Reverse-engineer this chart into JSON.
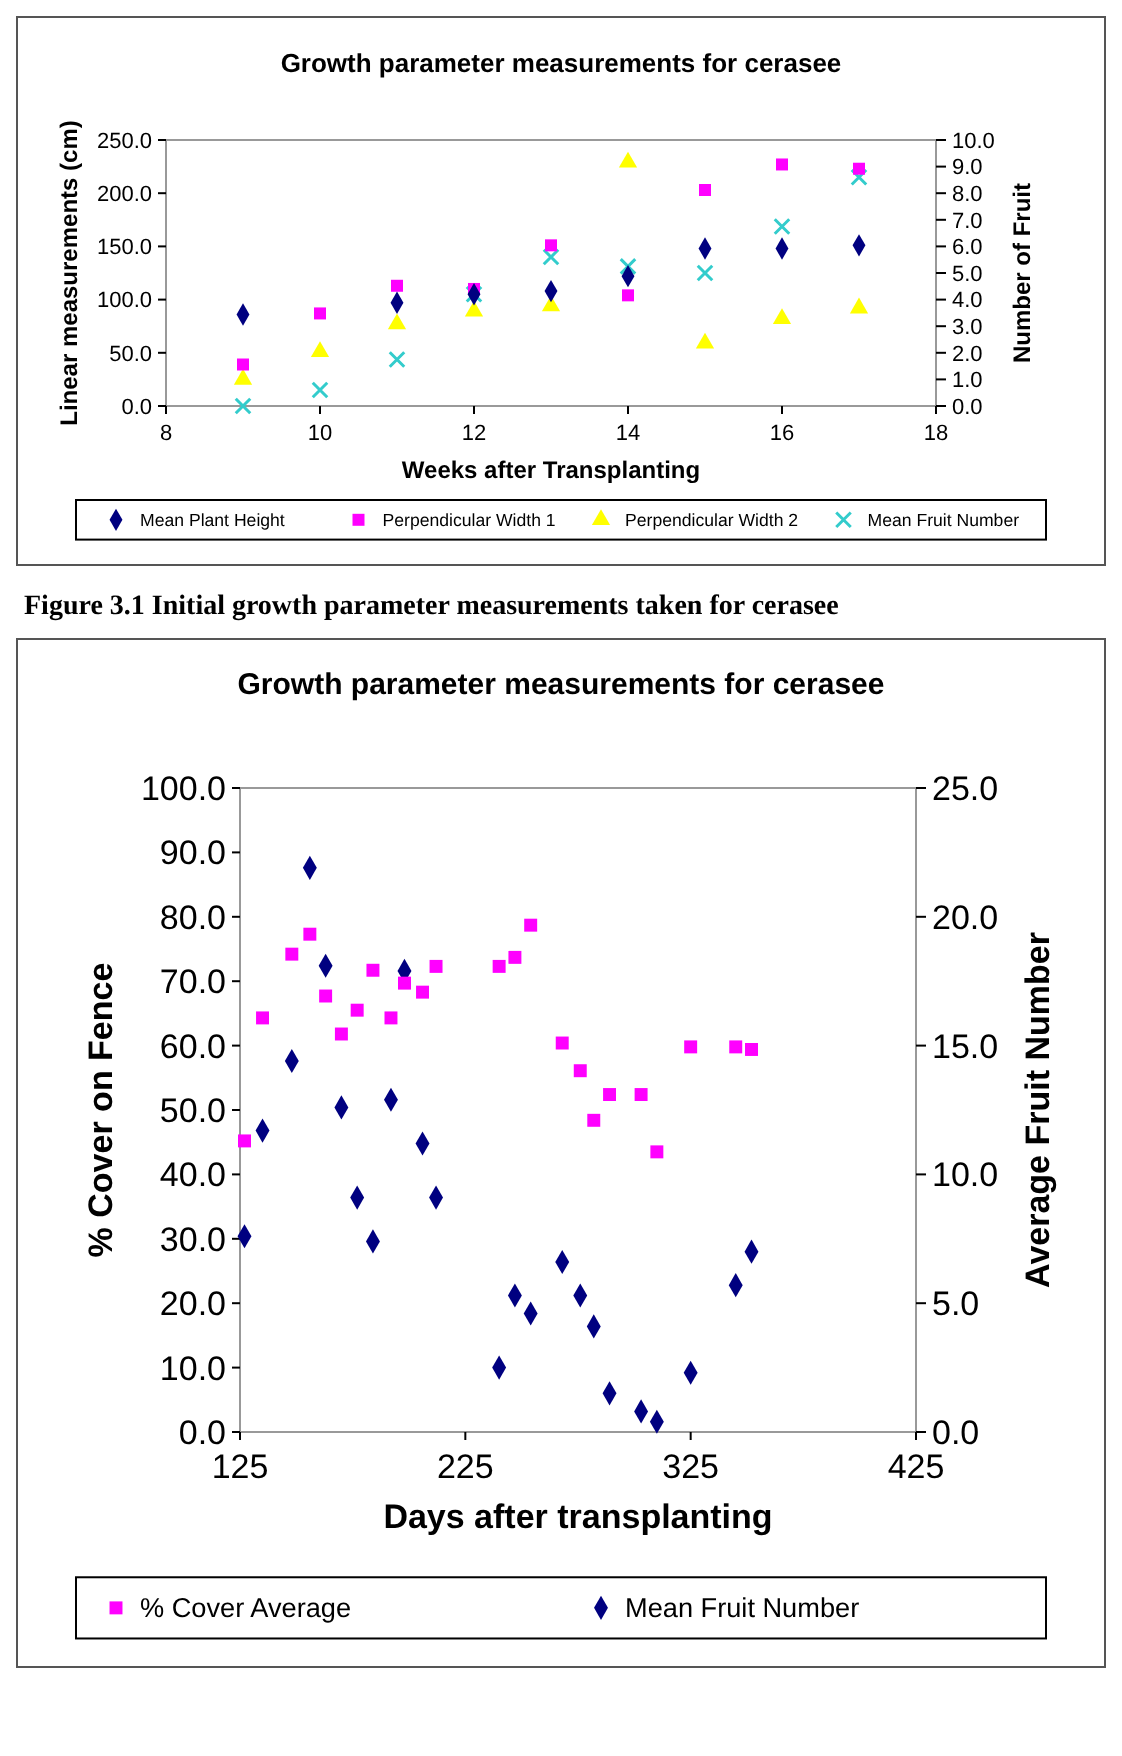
{
  "chart_data": [
    {
      "type": "scatter",
      "title": "Growth parameter measurements for cerasee",
      "xlabel": "Weeks after Transplanting",
      "ylabel": "Linear measurements (cm)",
      "y2label": "Number of Fruit",
      "annotations": [
        "Figure 3.1 Initial growth parameter measurements taken for cerasee"
      ],
      "x": [
        9,
        10,
        11,
        12,
        13,
        14,
        15,
        16,
        17
      ],
      "xlim": [
        8,
        18
      ],
      "xticks": [
        8,
        10,
        12,
        14,
        16,
        18
      ],
      "ylim": [
        0,
        250
      ],
      "yticks": [
        {
          "value": 0,
          "label": "0.0"
        },
        {
          "value": 50,
          "label": "50.0"
        },
        {
          "value": 100,
          "label": "100.0"
        },
        {
          "value": 150,
          "label": "150.0"
        },
        {
          "value": 200,
          "label": "200.0"
        },
        {
          "value": 250,
          "label": "250.0"
        }
      ],
      "y2lim": [
        0,
        10
      ],
      "y2ticks": [
        {
          "value": 0,
          "label": "0.0"
        },
        {
          "value": 1,
          "label": "1.0"
        },
        {
          "value": 2,
          "label": "2.0"
        },
        {
          "value": 3,
          "label": "3.0"
        },
        {
          "value": 4,
          "label": "4.0"
        },
        {
          "value": 5,
          "label": "5.0"
        },
        {
          "value": 6,
          "label": "6.0"
        },
        {
          "value": 7,
          "label": "7.0"
        },
        {
          "value": 8,
          "label": "8.0"
        },
        {
          "value": 9,
          "label": "9.0"
        },
        {
          "value": 10,
          "label": "10.0"
        }
      ],
      "legend": "bottom",
      "series": [
        {
          "name": "Mean Plant Height",
          "color": "#000080",
          "marker": "diamond",
          "values": [
            86,
            null,
            97,
            105,
            108,
            122,
            148,
            148,
            151
          ]
        },
        {
          "name": "Perpendicular Width 1",
          "color": "#ff00ff",
          "marker": "square",
          "values": [
            39,
            87,
            113,
            110,
            151,
            104,
            203,
            227,
            223
          ]
        },
        {
          "name": "Perpendicular Width 2",
          "color": "#ffff00",
          "marker": "triangle",
          "values": [
            25,
            51,
            77,
            89,
            94,
            229,
            59,
            82,
            92
          ]
        },
        {
          "name": "Mean Fruit Number",
          "color": "#33cccc",
          "marker": "cross",
          "axis": "y2",
          "values": [
            0,
            0.6,
            1.75,
            4.2,
            5.6,
            5.25,
            5.0,
            6.75,
            8.6
          ]
        }
      ]
    },
    {
      "type": "scatter",
      "title": "Growth parameter measurements for cerasee",
      "xlabel": "Days after transplanting",
      "ylabel": "% Cover on Fence",
      "y2label": "Average Fruit Number",
      "xlim": [
        125,
        425
      ],
      "xticks": [
        125,
        225,
        325,
        425
      ],
      "ylim": [
        0,
        100
      ],
      "yticks": [
        {
          "value": 0,
          "label": "0.0"
        },
        {
          "value": 10,
          "label": "10.0"
        },
        {
          "value": 20,
          "label": "20.0"
        },
        {
          "value": 30,
          "label": "30.0"
        },
        {
          "value": 40,
          "label": "40.0"
        },
        {
          "value": 50,
          "label": "50.0"
        },
        {
          "value": 60,
          "label": "60.0"
        },
        {
          "value": 70,
          "label": "70.0"
        },
        {
          "value": 80,
          "label": "80.0"
        },
        {
          "value": 90,
          "label": "90.0"
        },
        {
          "value": 100,
          "label": "100.0"
        }
      ],
      "y2lim": [
        0,
        25
      ],
      "y2ticks": [
        {
          "value": 0,
          "label": "0.0"
        },
        {
          "value": 5,
          "label": "5.0"
        },
        {
          "value": 10,
          "label": "10.0"
        },
        {
          "value": 15,
          "label": "15.0"
        },
        {
          "value": 20,
          "label": "20.0"
        },
        {
          "value": 25,
          "label": "25.0"
        }
      ],
      "legend": "bottom",
      "series": [
        {
          "name": "% Cover Average",
          "color": "#ff00ff",
          "marker": "square",
          "x": [
            127,
            135,
            148,
            156,
            163,
            170,
            177,
            184,
            192,
            198,
            206,
            212,
            240,
            247,
            254,
            268,
            276,
            282,
            289,
            303,
            310,
            325,
            345,
            352
          ],
          "values": [
            45.2,
            64.3,
            74.2,
            77.3,
            67.7,
            61.8,
            65.5,
            71.7,
            64.3,
            69.7,
            68.3,
            72.3,
            72.3,
            73.7,
            78.7,
            60.4,
            56.1,
            48.4,
            52.4,
            52.4,
            43.5,
            59.8,
            59.8,
            59.4
          ]
        },
        {
          "name": "Mean Fruit Number",
          "color": "#000080",
          "marker": "diamond",
          "axis": "y2",
          "x": [
            127,
            135,
            148,
            156,
            163,
            170,
            177,
            184,
            192,
            198,
            206,
            212,
            240,
            247,
            254,
            268,
            276,
            282,
            289,
            303,
            310,
            325,
            345,
            352
          ],
          "values": [
            7.6,
            11.7,
            14.4,
            21.9,
            18.1,
            12.6,
            9.1,
            7.4,
            12.9,
            17.9,
            11.2,
            9.1,
            2.5,
            5.3,
            4.6,
            6.6,
            5.3,
            4.1,
            1.5,
            0.8,
            0.4,
            2.3,
            5.7,
            7.0
          ]
        }
      ]
    }
  ]
}
